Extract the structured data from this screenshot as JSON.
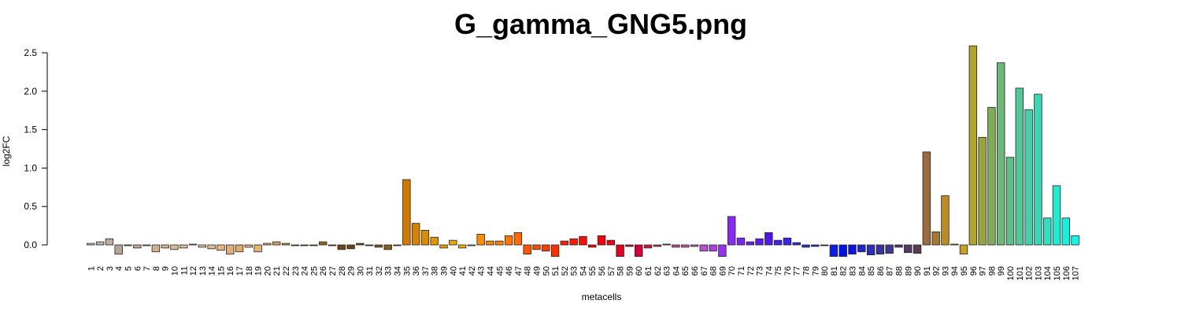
{
  "chart_data": {
    "type": "bar",
    "title": "G_gamma_GNG5.png",
    "xlabel": "metacells",
    "ylabel": "log2FC",
    "ylim": [
      0,
      2.5
    ],
    "yticks": [
      "0.0",
      "0.5",
      "1.0",
      "1.5",
      "2.0",
      "2.5"
    ],
    "grid": false,
    "categories": [
      "1",
      "2",
      "3",
      "4",
      "5",
      "6",
      "7",
      "8",
      "9",
      "10",
      "11",
      "12",
      "13",
      "14",
      "15",
      "16",
      "17",
      "18",
      "19",
      "20",
      "21",
      "22",
      "23",
      "24",
      "25",
      "26",
      "27",
      "28",
      "29",
      "30",
      "31",
      "32",
      "33",
      "34",
      "35",
      "36",
      "37",
      "38",
      "39",
      "40",
      "41",
      "42",
      "43",
      "44",
      "45",
      "46",
      "47",
      "48",
      "49",
      "50",
      "51",
      "52",
      "53",
      "54",
      "55",
      "56",
      "57",
      "58",
      "59",
      "60",
      "61",
      "62",
      "63",
      "64",
      "65",
      "66",
      "67",
      "68",
      "69",
      "70",
      "71",
      "72",
      "73",
      "74",
      "75",
      "76",
      "77",
      "78",
      "79",
      "80",
      "81",
      "82",
      "83",
      "84",
      "85",
      "86",
      "87",
      "88",
      "89",
      "90",
      "91",
      "92",
      "93",
      "94",
      "95",
      "96",
      "97",
      "98",
      "99",
      "100",
      "101",
      "102",
      "103",
      "104",
      "105",
      "106",
      "107"
    ],
    "values": [
      0.02,
      0.04,
      0.08,
      -0.12,
      -0.01,
      -0.04,
      -0.01,
      -0.09,
      -0.04,
      -0.06,
      -0.04,
      0.01,
      -0.03,
      -0.05,
      -0.07,
      -0.12,
      -0.09,
      -0.03,
      -0.09,
      0.02,
      0.04,
      0.02,
      -0.01,
      -0.01,
      -0.01,
      0.04,
      -0.01,
      -0.06,
      -0.05,
      0.02,
      -0.01,
      -0.03,
      -0.06,
      -0.01,
      0.85,
      0.28,
      0.19,
      0.1,
      -0.04,
      0.06,
      -0.04,
      -0.01,
      0.14,
      0.05,
      0.05,
      0.12,
      0.16,
      -0.12,
      -0.06,
      -0.08,
      -0.15,
      0.05,
      0.08,
      0.11,
      -0.03,
      0.12,
      0.06,
      -0.15,
      -0.02,
      -0.15,
      -0.04,
      -0.02,
      0.01,
      -0.03,
      -0.03,
      -0.02,
      -0.08,
      -0.08,
      -0.15,
      0.37,
      0.09,
      0.04,
      0.08,
      0.16,
      0.06,
      0.09,
      0.03,
      -0.03,
      -0.02,
      -0.01,
      -0.15,
      -0.15,
      -0.12,
      -0.09,
      -0.13,
      -0.12,
      -0.11,
      -0.03,
      -0.1,
      -0.11,
      1.21,
      0.17,
      0.64,
      0.01,
      -0.12,
      2.59,
      1.4,
      1.79,
      2.37,
      1.14,
      2.04,
      1.76,
      1.96,
      0.35,
      0.77,
      0.35,
      0.12
    ],
    "colors": [
      "#c8c3b6",
      "#bdb5a5",
      "#b8ad9e",
      "#b4a695",
      "#b0a18c",
      "#c8a98c",
      "#c9aa89",
      "#ceb28f",
      "#d2b793",
      "#d8bb93",
      "#dcc09a",
      "#e0c299",
      "#e1bd92",
      "#e3bb8c",
      "#e3b582",
      "#e2ad76",
      "#e1a86e",
      "#dfb17f",
      "#e4b576",
      "#dea570",
      "#d79c58",
      "#c9903f",
      "#bb8230",
      "#ad7525",
      "#9f6a1c",
      "#926217",
      "#7e5312",
      "#6f480f",
      "#6a440e",
      "#6d480f",
      "#755012",
      "#7e5916",
      "#865f18",
      "#9a6a10",
      "#d07a00",
      "#d68400",
      "#dc8c00",
      "#e29500",
      "#e89e00",
      "#eea600",
      "#f3ad00",
      "#f6b000",
      "#ff8c00",
      "#ff8800",
      "#ff8200",
      "#ff7900",
      "#ff6a00",
      "#ff5500",
      "#ff4a00",
      "#ff3d00",
      "#ff3000",
      "#ff2200",
      "#ff1700",
      "#ff0e00",
      "#ff0000",
      "#f5000a",
      "#ee0012",
      "#e4001c",
      "#dc0028",
      "#d80038",
      "#d31a4a",
      "#cc2f5e",
      "#c83d74",
      "#c44b8e",
      "#c257a6",
      "#bf5bba",
      "#b850d0",
      "#a840e2",
      "#9830ef",
      "#8a28f5",
      "#7c24f4",
      "#6c20f0",
      "#5c1cee",
      "#4c18ec",
      "#4022ea",
      "#3428e6",
      "#2a2ce4",
      "#1e30e2",
      "#1434e0",
      "#0a36e0",
      "#0a1ee8",
      "#0012f0",
      "#0a14e4",
      "#1e24cc",
      "#2e30b4",
      "#3a34a0",
      "#42368c",
      "#4a3878",
      "#523a64",
      "#5a3c50",
      "#9c6a3c",
      "#a8782e",
      "#bc8c24",
      "#c89c20",
      "#c2a026",
      "#b0a42c",
      "#98a43c",
      "#80ac58",
      "#6cb878",
      "#5cc088",
      "#50c898",
      "#44d0a6",
      "#38d8b4",
      "#30e0c0",
      "#20ecd0",
      "#14f2dc",
      "#10f8ea"
    ]
  }
}
